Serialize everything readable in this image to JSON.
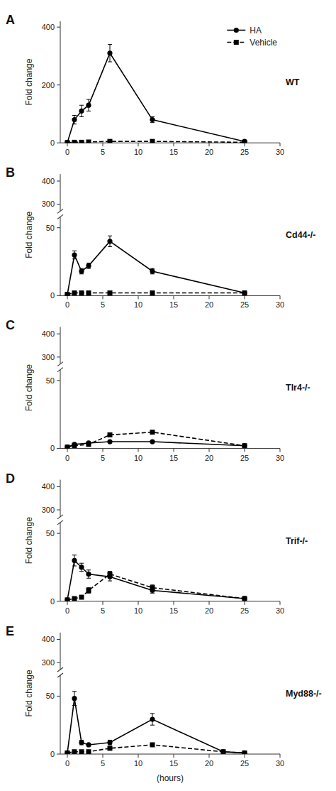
{
  "chart_data": [
    {
      "type": "line",
      "title": "A",
      "annotations": [
        "WT"
      ],
      "ylabel": "Fold change",
      "x": [
        0,
        1,
        2,
        3,
        6,
        12,
        25
      ],
      "xlim": [
        -1,
        30
      ],
      "xticks": [
        0,
        5,
        10,
        15,
        20,
        25,
        30
      ],
      "ylim": [
        0,
        420
      ],
      "yticks": [
        0,
        200,
        400
      ],
      "legend": "upper right",
      "series": [
        {
          "name": "HA",
          "color": "#000000",
          "marker": "circle",
          "line_style": "solid",
          "values": [
            1,
            80,
            110,
            130,
            310,
            80,
            5
          ],
          "errors": [
            0,
            15,
            20,
            20,
            30,
            10,
            2
          ]
        },
        {
          "name": "Vehicle",
          "color": "#000000",
          "marker": "square",
          "line_style": "dashed",
          "values": [
            1,
            2,
            2,
            3,
            5,
            5,
            2
          ],
          "errors": [
            0,
            1,
            1,
            1,
            1,
            1,
            1
          ]
        }
      ]
    },
    {
      "type": "line",
      "title": "B",
      "annotations": [
        "Cd44-/-"
      ],
      "ylim": [
        270,
        430
      ],
      "yticks": [
        300,
        400
      ],
      "tick_labels": "y"
    },
    {
      "type": "line",
      "ylabel": "Fold change",
      "x": [
        0,
        1,
        2,
        3,
        6,
        12,
        25
      ],
      "xlim": [
        -1,
        30
      ],
      "xticks": [
        0,
        5,
        10,
        15,
        20,
        25,
        30
      ],
      "ylim": [
        0,
        58
      ],
      "yticks": [
        0,
        50
      ],
      "series": [
        {
          "name": "HA",
          "color": "#000000",
          "marker": "circle",
          "line_style": "solid",
          "values": [
            1,
            30,
            18,
            22,
            40,
            18,
            2
          ],
          "errors": [
            0,
            3,
            2,
            2,
            4,
            2,
            1
          ]
        },
        {
          "name": "Vehicle",
          "color": "#000000",
          "marker": "square",
          "line_style": "dashed",
          "values": [
            1,
            2,
            2,
            2,
            2,
            2,
            2
          ],
          "errors": [
            0,
            0.5,
            0.5,
            0.5,
            0.5,
            0.5,
            0.5
          ]
        }
      ]
    },
    {
      "type": "line",
      "title": "C",
      "annotations": [
        "Tlr4-/-"
      ],
      "ylim": [
        270,
        430
      ],
      "yticks": [
        300,
        400
      ],
      "tick_labels": "y"
    },
    {
      "type": "line",
      "ylabel": "Fold change",
      "x": [
        0,
        1,
        3,
        6,
        12,
        25
      ],
      "xlim": [
        -1,
        30
      ],
      "xticks": [
        0,
        5,
        10,
        15,
        20,
        25,
        30
      ],
      "ylim": [
        0,
        58
      ],
      "yticks": [
        0,
        50
      ],
      "series": [
        {
          "name": "HA",
          "color": "#000000",
          "marker": "circle",
          "line_style": "solid",
          "values": [
            1,
            3,
            4,
            5,
            5,
            2
          ],
          "errors": [
            0,
            0.5,
            0.5,
            0.5,
            0.5,
            0.5
          ]
        },
        {
          "name": "Vehicle",
          "color": "#000000",
          "marker": "square",
          "line_style": "dashed",
          "values": [
            1,
            2,
            3,
            10,
            12,
            2
          ],
          "errors": [
            0,
            0.5,
            0.5,
            1,
            1,
            0.5
          ]
        }
      ]
    },
    {
      "type": "line",
      "title": "D",
      "annotations": [
        "Trif-/-"
      ],
      "ylim": [
        270,
        430
      ],
      "yticks": [
        300,
        400
      ],
      "tick_labels": "y"
    },
    {
      "type": "line",
      "ylabel": "Fold change",
      "x": [
        0,
        1,
        2,
        3,
        6,
        12,
        25
      ],
      "xlim": [
        -1,
        30
      ],
      "xticks": [
        0,
        5,
        10,
        15,
        20,
        25,
        30
      ],
      "ylim": [
        0,
        58
      ],
      "yticks": [
        0,
        50
      ],
      "series": [
        {
          "name": "HA",
          "color": "#000000",
          "marker": "circle",
          "line_style": "solid",
          "values": [
            1,
            30,
            25,
            20,
            18,
            8,
            2
          ],
          "errors": [
            0,
            4,
            3,
            3,
            3,
            2,
            1
          ]
        },
        {
          "name": "Vehicle",
          "color": "#000000",
          "marker": "square",
          "line_style": "dashed",
          "values": [
            1,
            2,
            3,
            8,
            20,
            10,
            2
          ],
          "errors": [
            0,
            1,
            1,
            2,
            2,
            2,
            1
          ]
        }
      ]
    },
    {
      "type": "line",
      "title": "E",
      "annotations": [
        "Myd88-/-"
      ],
      "ylim": [
        270,
        430
      ],
      "yticks": [
        300,
        400
      ],
      "tick_labels": "y"
    },
    {
      "type": "line",
      "ylabel": "Fold change",
      "xlabel": "(hours)",
      "x": [
        0,
        1,
        2,
        3,
        6,
        12,
        22,
        25
      ],
      "xlim": [
        -1,
        30
      ],
      "xticks": [
        0,
        5,
        10,
        15,
        20,
        25,
        30
      ],
      "ylim": [
        0,
        68
      ],
      "yticks": [
        0,
        50
      ],
      "series": [
        {
          "name": "HA",
          "color": "#000000",
          "marker": "circle",
          "line_style": "solid",
          "values": [
            1,
            48,
            10,
            8,
            10,
            30,
            2,
            1
          ],
          "errors": [
            0,
            6,
            2,
            1,
            2,
            5,
            1,
            0
          ]
        },
        {
          "name": "Vehicle",
          "color": "#000000",
          "marker": "square",
          "line_style": "dashed",
          "values": [
            1,
            2,
            2,
            2,
            5,
            8,
            2,
            1
          ],
          "errors": [
            0,
            0.5,
            0.5,
            0.5,
            1,
            1,
            0.5,
            0
          ]
        }
      ]
    }
  ]
}
